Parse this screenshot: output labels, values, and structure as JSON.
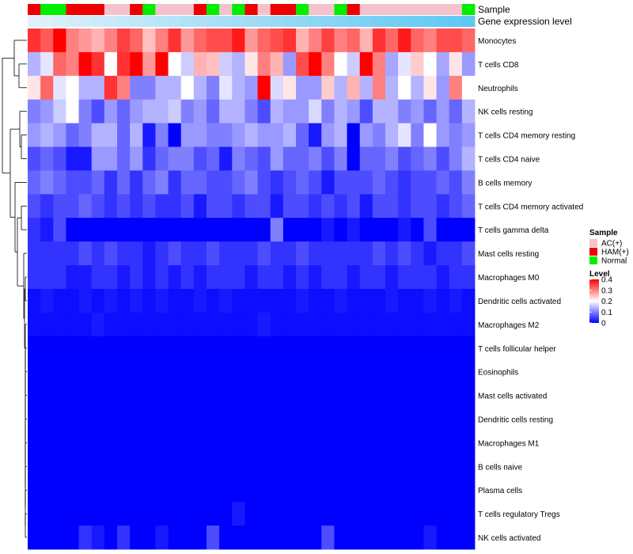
{
  "chart_data": {
    "type": "heatmap",
    "annotation_title": "Sample",
    "annotation2_title": "Gene expression level",
    "rows": [
      "Monocytes",
      "T cells CD8",
      "Neutrophils",
      "NK cells resting",
      "T cells CD4 memory resting",
      "T cells CD4 naive",
      "B cells memory",
      "T cells CD4 memory activated",
      "T cells gamma delta",
      "Mast cells resting",
      "Macrophages M0",
      "Dendritic cells activated",
      "Macrophages M2",
      "T cells follicular helper",
      "Eosinophils",
      "Mast cells activated",
      "Dendritic cells resting",
      "Macrophages M1",
      "B cells naive",
      "Plasma cells",
      "T cells regulatory  Tregs",
      "NK cells activated"
    ],
    "sample_groups": [
      "HAM(+)",
      "Normal",
      "Normal",
      "HAM(+)",
      "HAM(+)",
      "HAM(+)",
      "AC(+)",
      "AC(+)",
      "HAM(+)",
      "Normal",
      "AC(+)",
      "AC(+)",
      "AC(+)",
      "HAM(+)",
      "Normal",
      "AC(+)",
      "Normal",
      "HAM(+)",
      "AC(+)",
      "HAM(+)",
      "HAM(+)",
      "Normal",
      "AC(+)",
      "AC(+)",
      "Normal",
      "HAM(+)",
      "AC(+)",
      "AC(+)",
      "AC(+)",
      "AC(+)",
      "AC(+)",
      "AC(+)",
      "AC(+)",
      "AC(+)",
      "Normal"
    ],
    "expression_gradient": [
      "#dff1fb",
      "#5ec8f2"
    ],
    "values": [
      [
        0.36,
        0.33,
        0.4,
        0.3,
        0.28,
        0.26,
        0.3,
        0.35,
        0.32,
        0.25,
        0.3,
        0.36,
        0.28,
        0.32,
        0.34,
        0.34,
        0.38,
        0.28,
        0.32,
        0.34,
        0.36,
        0.26,
        0.3,
        0.35,
        0.3,
        0.32,
        0.26,
        0.36,
        0.32,
        0.38,
        0.32,
        0.3,
        0.34,
        0.34,
        0.32
      ],
      [
        0.14,
        0.18,
        0.32,
        0.3,
        0.4,
        0.36,
        0.2,
        0.36,
        0.4,
        0.28,
        0.4,
        0.2,
        0.16,
        0.26,
        0.25,
        0.16,
        0.14,
        0.22,
        0.3,
        0.26,
        0.12,
        0.34,
        0.4,
        0.3,
        0.2,
        0.16,
        0.4,
        0.3,
        0.13,
        0.18,
        0.24,
        0.2,
        0.13,
        0.22,
        0.12
      ],
      [
        0.22,
        0.32,
        0.18,
        0.2,
        0.14,
        0.14,
        0.36,
        0.3,
        0.1,
        0.1,
        0.14,
        0.14,
        0.2,
        0.14,
        0.1,
        0.18,
        0.14,
        0.12,
        0.4,
        0.17,
        0.22,
        0.12,
        0.12,
        0.24,
        0.14,
        0.26,
        0.14,
        0.3,
        0.14,
        0.2,
        0.14,
        0.22,
        0.12,
        0.3,
        0.2
      ],
      [
        0.1,
        0.12,
        0.16,
        0.2,
        0.1,
        0.06,
        0.12,
        0.08,
        0.12,
        0.14,
        0.14,
        0.16,
        0.1,
        0.12,
        0.08,
        0.14,
        0.14,
        0.1,
        0.06,
        0.14,
        0.12,
        0.12,
        0.17,
        0.1,
        0.14,
        0.12,
        0.06,
        0.14,
        0.14,
        0.1,
        0.12,
        0.08,
        0.12,
        0.08,
        0.14
      ],
      [
        0.12,
        0.14,
        0.12,
        0.08,
        0.1,
        0.14,
        0.14,
        0.08,
        0.14,
        0.02,
        0.1,
        0.0,
        0.12,
        0.12,
        0.1,
        0.1,
        0.12,
        0.14,
        0.12,
        0.12,
        0.14,
        0.08,
        0.02,
        0.12,
        0.14,
        0.0,
        0.12,
        0.1,
        0.14,
        0.18,
        0.1,
        0.2,
        0.12,
        0.1,
        0.12
      ],
      [
        0.06,
        0.08,
        0.06,
        0.02,
        0.02,
        0.12,
        0.12,
        0.08,
        0.12,
        0.04,
        0.08,
        0.1,
        0.1,
        0.06,
        0.08,
        0.02,
        0.1,
        0.08,
        0.06,
        0.12,
        0.08,
        0.08,
        0.1,
        0.06,
        0.1,
        0.0,
        0.08,
        0.08,
        0.1,
        0.06,
        0.08,
        0.1,
        0.06,
        0.1,
        0.14
      ],
      [
        0.08,
        0.1,
        0.08,
        0.06,
        0.06,
        0.08,
        0.04,
        0.08,
        0.04,
        0.08,
        0.1,
        0.04,
        0.08,
        0.08,
        0.06,
        0.06,
        0.08,
        0.1,
        0.06,
        0.04,
        0.06,
        0.08,
        0.06,
        0.02,
        0.06,
        0.06,
        0.06,
        0.08,
        0.06,
        0.04,
        0.06,
        0.06,
        0.08,
        0.06,
        0.1
      ],
      [
        0.06,
        0.04,
        0.06,
        0.06,
        0.08,
        0.06,
        0.04,
        0.06,
        0.04,
        0.06,
        0.04,
        0.04,
        0.06,
        0.02,
        0.06,
        0.06,
        0.04,
        0.06,
        0.06,
        0.02,
        0.06,
        0.06,
        0.04,
        0.06,
        0.04,
        0.06,
        0.02,
        0.06,
        0.06,
        0.04,
        0.06,
        0.06,
        0.04,
        0.06,
        0.08
      ],
      [
        0.04,
        0.02,
        0.06,
        0.0,
        0.0,
        0.0,
        0.0,
        0.0,
        0.0,
        0.0,
        0.0,
        0.0,
        0.0,
        0.0,
        0.0,
        0.0,
        0.0,
        0.0,
        0.0,
        0.1,
        0.0,
        0.0,
        0.0,
        0.02,
        0.0,
        0.02,
        0.0,
        0.0,
        0.0,
        0.02,
        0.0,
        0.06,
        0.0,
        0.0,
        0.0
      ],
      [
        0.04,
        0.04,
        0.04,
        0.04,
        0.06,
        0.04,
        0.06,
        0.04,
        0.04,
        0.02,
        0.04,
        0.06,
        0.04,
        0.04,
        0.06,
        0.04,
        0.04,
        0.04,
        0.06,
        0.04,
        0.04,
        0.06,
        0.04,
        0.04,
        0.04,
        0.04,
        0.04,
        0.06,
        0.04,
        0.06,
        0.04,
        0.02,
        0.04,
        0.04,
        0.06
      ],
      [
        0.04,
        0.04,
        0.04,
        0.02,
        0.02,
        0.04,
        0.04,
        0.02,
        0.04,
        0.02,
        0.04,
        0.02,
        0.04,
        0.02,
        0.04,
        0.04,
        0.04,
        0.02,
        0.04,
        0.04,
        0.02,
        0.04,
        0.02,
        0.04,
        0.04,
        0.02,
        0.04,
        0.04,
        0.02,
        0.04,
        0.04,
        0.04,
        0.02,
        0.04,
        0.04
      ],
      [
        0.01,
        0.02,
        0.01,
        0.01,
        0.02,
        0.01,
        0.02,
        0.01,
        0.02,
        0.01,
        0.02,
        0.01,
        0.01,
        0.02,
        0.01,
        0.02,
        0.01,
        0.01,
        0.01,
        0.01,
        0.01,
        0.02,
        0.01,
        0.01,
        0.02,
        0.01,
        0.01,
        0.01,
        0.02,
        0.01,
        0.01,
        0.02,
        0.01,
        0.02,
        0.01
      ],
      [
        0.01,
        0.01,
        0.01,
        0.01,
        0.01,
        0.02,
        0.01,
        0.01,
        0.01,
        0.01,
        0.01,
        0.01,
        0.01,
        0.01,
        0.01,
        0.01,
        0.01,
        0.01,
        0.02,
        0.01,
        0.01,
        0.01,
        0.01,
        0.01,
        0.01,
        0.01,
        0.01,
        0.01,
        0.01,
        0.01,
        0.01,
        0.01,
        0.01,
        0.01,
        0.01
      ],
      [
        0.0,
        0.0,
        0.0,
        0.0,
        0.0,
        0.0,
        0.0,
        0.0,
        0.0,
        0.0,
        0.0,
        0.0,
        0.0,
        0.0,
        0.0,
        0.0,
        0.0,
        0.0,
        0.0,
        0.0,
        0.0,
        0.0,
        0.0,
        0.0,
        0.0,
        0.0,
        0.0,
        0.0,
        0.0,
        0.0,
        0.0,
        0.0,
        0.0,
        0.0,
        0.0
      ],
      [
        0.0,
        0.0,
        0.0,
        0.0,
        0.0,
        0.0,
        0.0,
        0.0,
        0.0,
        0.0,
        0.0,
        0.0,
        0.0,
        0.0,
        0.0,
        0.0,
        0.0,
        0.0,
        0.0,
        0.0,
        0.0,
        0.0,
        0.0,
        0.0,
        0.0,
        0.0,
        0.0,
        0.0,
        0.0,
        0.0,
        0.0,
        0.0,
        0.0,
        0.0,
        0.0
      ],
      [
        0.0,
        0.0,
        0.0,
        0.0,
        0.0,
        0.0,
        0.0,
        0.0,
        0.0,
        0.0,
        0.0,
        0.0,
        0.0,
        0.0,
        0.0,
        0.0,
        0.0,
        0.0,
        0.0,
        0.0,
        0.0,
        0.0,
        0.0,
        0.0,
        0.0,
        0.0,
        0.0,
        0.0,
        0.0,
        0.0,
        0.0,
        0.0,
        0.0,
        0.0,
        0.0
      ],
      [
        0.0,
        0.0,
        0.0,
        0.0,
        0.0,
        0.0,
        0.0,
        0.0,
        0.0,
        0.0,
        0.0,
        0.0,
        0.0,
        0.0,
        0.0,
        0.0,
        0.0,
        0.0,
        0.0,
        0.0,
        0.0,
        0.0,
        0.0,
        0.0,
        0.0,
        0.0,
        0.0,
        0.0,
        0.0,
        0.0,
        0.0,
        0.0,
        0.0,
        0.0,
        0.0
      ],
      [
        0.0,
        0.0,
        0.0,
        0.0,
        0.0,
        0.0,
        0.0,
        0.0,
        0.0,
        0.0,
        0.0,
        0.0,
        0.0,
        0.0,
        0.0,
        0.0,
        0.0,
        0.0,
        0.0,
        0.0,
        0.0,
        0.0,
        0.0,
        0.0,
        0.0,
        0.0,
        0.0,
        0.0,
        0.0,
        0.0,
        0.0,
        0.0,
        0.0,
        0.0,
        0.0
      ],
      [
        0.0,
        0.0,
        0.0,
        0.0,
        0.0,
        0.0,
        0.0,
        0.0,
        0.0,
        0.0,
        0.0,
        0.0,
        0.0,
        0.0,
        0.0,
        0.0,
        0.0,
        0.0,
        0.0,
        0.0,
        0.0,
        0.0,
        0.0,
        0.0,
        0.0,
        0.0,
        0.0,
        0.0,
        0.0,
        0.0,
        0.0,
        0.0,
        0.0,
        0.0,
        0.0
      ],
      [
        0.0,
        0.0,
        0.0,
        0.0,
        0.0,
        0.0,
        0.0,
        0.0,
        0.0,
        0.0,
        0.0,
        0.0,
        0.0,
        0.0,
        0.0,
        0.0,
        0.0,
        0.0,
        0.0,
        0.0,
        0.0,
        0.0,
        0.0,
        0.0,
        0.0,
        0.0,
        0.0,
        0.0,
        0.0,
        0.0,
        0.0,
        0.0,
        0.0,
        0.0,
        0.0
      ],
      [
        0.0,
        0.0,
        0.0,
        0.0,
        0.0,
        0.0,
        0.0,
        0.0,
        0.0,
        0.0,
        0.0,
        0.0,
        0.0,
        0.0,
        0.0,
        0.0,
        0.02,
        0.0,
        0.0,
        0.0,
        0.0,
        0.0,
        0.0,
        0.0,
        0.0,
        0.0,
        0.0,
        0.0,
        0.0,
        0.0,
        0.0,
        0.0,
        0.0,
        0.0,
        0.0
      ],
      [
        0.0,
        0.0,
        0.0,
        0.0,
        0.04,
        0.02,
        0.0,
        0.04,
        0.0,
        0.0,
        0.02,
        0.0,
        0.0,
        0.0,
        0.06,
        0.0,
        0.0,
        0.0,
        0.0,
        0.0,
        0.0,
        0.0,
        0.0,
        0.06,
        0.0,
        0.0,
        0.0,
        0.0,
        0.0,
        0.0,
        0.0,
        0.02,
        0.0,
        0.0,
        0.0
      ]
    ],
    "legend_sample": {
      "title": "Sample",
      "entries": [
        {
          "label": "AC(+)",
          "color": "#f4c2cc"
        },
        {
          "label": "HAM(+)",
          "color": "#ee0000"
        },
        {
          "label": "Normal",
          "color": "#00ee00"
        }
      ]
    },
    "legend_level": {
      "title": "Level",
      "ticks": [
        "0.4",
        "0.3",
        "0.2",
        "0.1",
        "0"
      ],
      "range": [
        0,
        0.4
      ],
      "colors": [
        "#0000ff",
        "#ffffff",
        "#ff0000"
      ]
    }
  }
}
